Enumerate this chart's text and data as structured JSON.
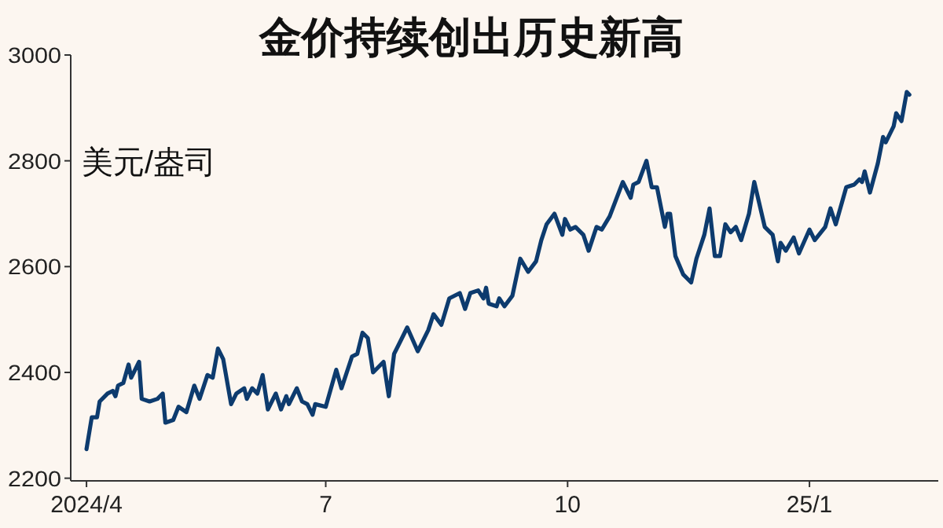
{
  "chart_data": {
    "type": "line",
    "title": "金价持续创出历史新高",
    "ylabel": "美元/盎司",
    "xlim": [
      "2024-03-26",
      "2025-02-19"
    ],
    "ylim": [
      2195,
      3000
    ],
    "xticks": [
      {
        "value": "2024-04-01",
        "label": "2024/4"
      },
      {
        "value": "2024-07-01",
        "label": "7"
      },
      {
        "value": "2024-10-01",
        "label": "10"
      },
      {
        "value": "2025-01-01",
        "label": "25/1"
      }
    ],
    "yticks": [
      2200,
      2400,
      2600,
      2800,
      3000
    ],
    "x": [
      "2024-04-01",
      "2024-04-03",
      "2024-04-05",
      "2024-04-06",
      "2024-04-09",
      "2024-04-11",
      "2024-04-12",
      "2024-04-13",
      "2024-04-15",
      "2024-04-17",
      "2024-04-18",
      "2024-04-21",
      "2024-04-22",
      "2024-04-25",
      "2024-04-28",
      "2024-04-30",
      "2024-05-01",
      "2024-05-04",
      "2024-05-06",
      "2024-05-09",
      "2024-05-12",
      "2024-05-14",
      "2024-05-17",
      "2024-05-19",
      "2024-05-21",
      "2024-05-23",
      "2024-05-26",
      "2024-05-28",
      "2024-05-31",
      "2024-06-01",
      "2024-06-03",
      "2024-06-05",
      "2024-06-07",
      "2024-06-09",
      "2024-06-12",
      "2024-06-14",
      "2024-06-16",
      "2024-06-17",
      "2024-06-20",
      "2024-06-22",
      "2024-06-24",
      "2024-06-26",
      "2024-06-27",
      "2024-07-01",
      "2024-07-05",
      "2024-07-07",
      "2024-07-11",
      "2024-07-13",
      "2024-07-15",
      "2024-07-17",
      "2024-07-19",
      "2024-07-23",
      "2024-07-25",
      "2024-07-27",
      "2024-08-01",
      "2024-08-05",
      "2024-08-09",
      "2024-08-11",
      "2024-08-14",
      "2024-08-17",
      "2024-08-21",
      "2024-08-23",
      "2024-08-25",
      "2024-08-28",
      "2024-08-30",
      "2024-08-31",
      "2024-09-01",
      "2024-09-04",
      "2024-09-05",
      "2024-09-07",
      "2024-09-10",
      "2024-09-13",
      "2024-09-16",
      "2024-09-19",
      "2024-09-21",
      "2024-09-23",
      "2024-09-26",
      "2024-09-29",
      "2024-09-30",
      "2024-10-02",
      "2024-10-04",
      "2024-10-07",
      "2024-10-09",
      "2024-10-12",
      "2024-10-14",
      "2024-10-17",
      "2024-10-22",
      "2024-10-25",
      "2024-10-26",
      "2024-10-28",
      "2024-10-31",
      "2024-11-02",
      "2024-11-04",
      "2024-11-07",
      "2024-11-08",
      "2024-11-09",
      "2024-11-11",
      "2024-11-14",
      "2024-11-17",
      "2024-11-19",
      "2024-11-22",
      "2024-11-24",
      "2024-11-26",
      "2024-11-28",
      "2024-11-30",
      "2024-12-02",
      "2024-12-04",
      "2024-12-06",
      "2024-12-09",
      "2024-12-11",
      "2024-12-15",
      "2024-12-18",
      "2024-12-20",
      "2024-12-21",
      "2024-12-23",
      "2024-12-26",
      "2024-12-28",
      "2025-01-01",
      "2025-01-03",
      "2025-01-07",
      "2025-01-09",
      "2025-01-11",
      "2025-01-15",
      "2025-01-18",
      "2025-01-20",
      "2025-01-21",
      "2025-01-22",
      "2025-01-24",
      "2025-01-27",
      "2025-01-29",
      "2025-01-30",
      "2025-02-02",
      "2025-02-03",
      "2025-02-05",
      "2025-02-07",
      "2025-02-08"
    ],
    "series": [
      {
        "color": "#0d3b6e",
        "values": [
          2255,
          2315,
          2315,
          2345,
          2360,
          2365,
          2355,
          2375,
          2380,
          2415,
          2390,
          2420,
          2350,
          2345,
          2350,
          2360,
          2305,
          2310,
          2335,
          2325,
          2375,
          2350,
          2395,
          2390,
          2445,
          2425,
          2340,
          2360,
          2370,
          2350,
          2370,
          2360,
          2395,
          2330,
          2360,
          2330,
          2355,
          2340,
          2370,
          2345,
          2340,
          2320,
          2340,
          2335,
          2405,
          2370,
          2430,
          2435,
          2475,
          2465,
          2400,
          2420,
          2355,
          2435,
          2485,
          2440,
          2480,
          2510,
          2490,
          2540,
          2550,
          2520,
          2550,
          2555,
          2540,
          2560,
          2530,
          2525,
          2540,
          2525,
          2545,
          2615,
          2590,
          2610,
          2650,
          2680,
          2700,
          2660,
          2690,
          2670,
          2675,
          2660,
          2630,
          2675,
          2670,
          2695,
          2760,
          2730,
          2755,
          2760,
          2800,
          2750,
          2750,
          2675,
          2700,
          2700,
          2620,
          2585,
          2570,
          2615,
          2660,
          2710,
          2620,
          2620,
          2680,
          2665,
          2675,
          2650,
          2700,
          2760,
          2675,
          2660,
          2610,
          2645,
          2630,
          2655,
          2625,
          2670,
          2650,
          2675,
          2710,
          2680,
          2750,
          2755,
          2765,
          2760,
          2780,
          2740,
          2795,
          2845,
          2835,
          2865,
          2890,
          2875,
          2930,
          2925
        ]
      }
    ]
  }
}
